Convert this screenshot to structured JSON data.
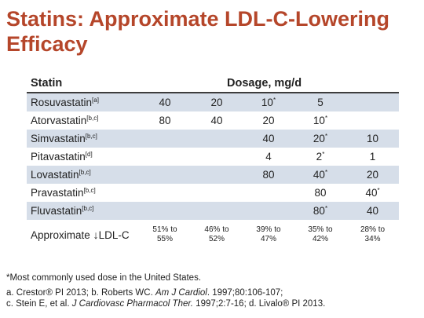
{
  "slide": {
    "title": "Statins: Approximate LDL-C-Lowering Efficacy"
  },
  "table": {
    "col_statin": "Statin",
    "col_dosage": "Dosage, mg/d",
    "rows": [
      {
        "name": "Rosuvastatin",
        "ref": "[a]",
        "cells": [
          "40",
          "20",
          "10",
          "5",
          ""
        ],
        "stars": [
          false,
          false,
          true,
          false,
          false
        ]
      },
      {
        "name": "Atorvastatin",
        "ref": "[b,c]",
        "cells": [
          "80",
          "40",
          "20",
          "10",
          ""
        ],
        "stars": [
          false,
          false,
          false,
          true,
          false
        ]
      },
      {
        "name": "Simvastatin",
        "ref": "[b,c]",
        "cells": [
          "",
          "",
          "40",
          "20",
          "10"
        ],
        "stars": [
          false,
          false,
          false,
          true,
          false
        ]
      },
      {
        "name": "Pitavastatin",
        "ref": "[d]",
        "cells": [
          "",
          "",
          "4",
          "2",
          "1"
        ],
        "stars": [
          false,
          false,
          false,
          true,
          false
        ]
      },
      {
        "name": "Lovastatin",
        "ref": "[b,c]",
        "cells": [
          "",
          "",
          "80",
          "40",
          "20"
        ],
        "stars": [
          false,
          false,
          false,
          true,
          false
        ]
      },
      {
        "name": "Pravastatin",
        "ref": "[b,c]",
        "cells": [
          "",
          "",
          "",
          "80",
          "40"
        ],
        "stars": [
          false,
          false,
          false,
          false,
          true
        ]
      },
      {
        "name": "Fluvastatin",
        "ref": "[b,c]",
        "cells": [
          "",
          "",
          "",
          "80",
          "40"
        ],
        "stars": [
          false,
          false,
          false,
          true,
          false
        ]
      }
    ],
    "approx": {
      "label": "Approximate",
      "arrow": "↓",
      "label_suffix": "LDL-C",
      "values": [
        [
          "51% to",
          "55%"
        ],
        [
          "46% to",
          "52%"
        ],
        [
          "39% to",
          "47%"
        ],
        [
          "35% to",
          "42%"
        ],
        [
          "28% to",
          "34%"
        ]
      ]
    },
    "star_symbol": "*"
  },
  "footnotes": {
    "star_note": "*Most commonly used dose in the United States.",
    "line2_a": "a. Crestor® PI 2013; b. Roberts WC. ",
    "line2_journal": "Am J Cardiol",
    "line2_b": ". 1997;80:106-107;",
    "line3_a": "c. Stein E, et al. ",
    "line3_journal": "J Cardiovasc Pharmacol Ther.",
    "line3_b": " 1997;2:7-16; d. Livalo® PI 2013."
  },
  "colors": {
    "title": "#b5462a",
    "row_shade": "#d6dee9",
    "header_rule": "#3d3d3d"
  }
}
